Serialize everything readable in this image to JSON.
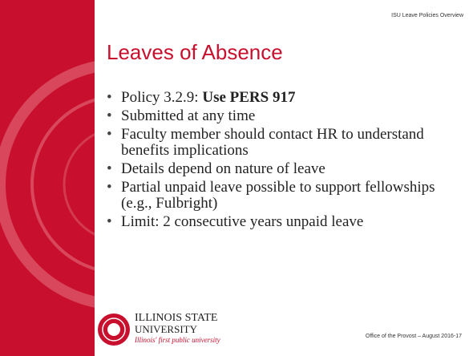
{
  "header": {
    "note": "ISU Leave Policies Overview"
  },
  "title": "Leaves of Absence",
  "bullets": [
    {
      "text": "Policy 3.2.9:  ",
      "bold": "Use PERS 917"
    },
    {
      "text": "Submitted at any time"
    },
    {
      "text": "Faculty member should contact HR to understand benefits implications"
    },
    {
      "text": "Details depend on nature of leave"
    },
    {
      "text": "Partial unpaid leave possible to support fellowships (e.g., Fulbright)"
    },
    {
      "text": "Limit:  2 consecutive years unpaid leave"
    }
  ],
  "logo": {
    "line1": "ILLINOIS STATE",
    "line2": "UNIVERSITY",
    "tagline": "Illinois' first public university"
  },
  "footer": "Office of the Provost – August 2016-17"
}
